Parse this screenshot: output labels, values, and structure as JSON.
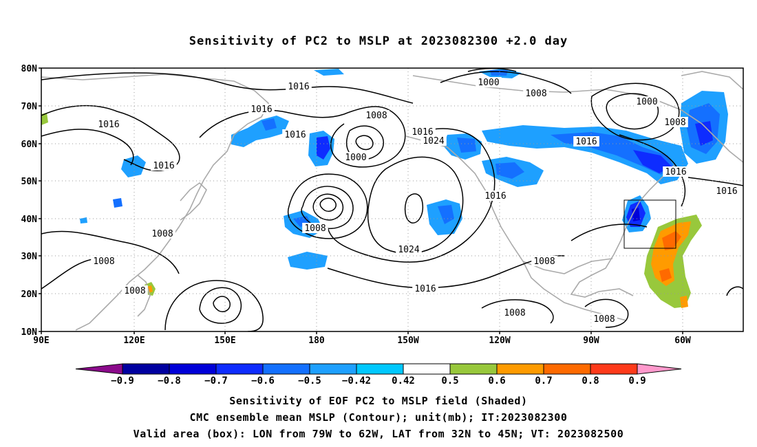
{
  "title": "Sensitivity of PC2 to MSLP at 2023082300 +2.0 day",
  "lat_labels": [
    "80N",
    "70N",
    "60N",
    "50N",
    "40N",
    "30N",
    "20N",
    "10N"
  ],
  "lon_labels": [
    "90E",
    "120E",
    "150E",
    "180",
    "150W",
    "120W",
    "90W",
    "60W"
  ],
  "colorbar": {
    "labels": [
      "-0.9",
      "-0.8",
      "-0.7",
      "-0.6",
      "-0.5",
      "-0.42",
      "0.42",
      "0.5",
      "0.6",
      "0.7",
      "0.8",
      "0.9"
    ],
    "colors": [
      "#8b0a8b",
      "#0000a0",
      "#0000d8",
      "#0e2cff",
      "#1470ff",
      "#1ea0ff",
      "#00c8ff",
      "#ffffff",
      "#98c83c",
      "#ff9b00",
      "#ff6a00",
      "#ff3a1a",
      "#ff0000",
      "#ff99cc"
    ]
  },
  "contour_labels": [
    {
      "text": "1016"
    },
    {
      "text": "1016"
    },
    {
      "text": "1016"
    },
    {
      "text": "1016"
    },
    {
      "text": "1016"
    },
    {
      "text": "1008"
    },
    {
      "text": "1000"
    },
    {
      "text": "1016"
    },
    {
      "text": "1024"
    },
    {
      "text": "1008"
    },
    {
      "text": "1024"
    },
    {
      "text": "1016"
    },
    {
      "text": "1016"
    },
    {
      "text": "1000"
    },
    {
      "text": "1008"
    },
    {
      "text": "1000"
    },
    {
      "text": "1008"
    },
    {
      "text": "1016"
    },
    {
      "text": "1016"
    },
    {
      "text": "1016"
    },
    {
      "text": "1008"
    },
    {
      "text": "1008"
    },
    {
      "text": "1008"
    },
    {
      "text": "1008"
    },
    {
      "text": "1008"
    },
    {
      "text": "1008"
    }
  ],
  "valid_box": {
    "lon_west": "79W",
    "lon_east": "62W",
    "lat_south": "32N",
    "lat_north": "45N"
  },
  "captions": [
    "Sensitivity of EOF PC2 to MSLP field (Shaded)",
    "CMC ensemble mean MSLP (Contour); unit(mb); IT:2023082300",
    "Valid area (box): LON from 79W to 62W, LAT from 32N to 45N; VT: 2023082500"
  ]
}
